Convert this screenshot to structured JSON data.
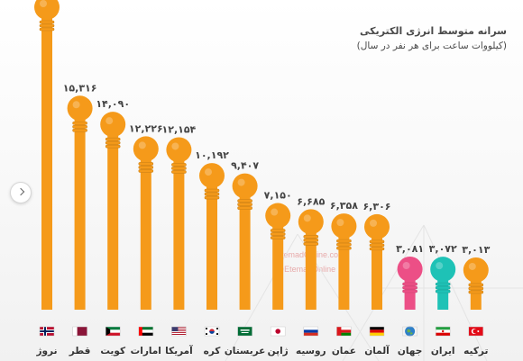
{
  "chart_data": {
    "type": "bar",
    "title": "سرانه متوسط انرژی الکتریکی",
    "subtitle": "(کیلووات ساعت برای هر نفر در سال)",
    "xlabel": "",
    "ylabel": "",
    "categories": [
      "نروژ",
      "قطر",
      "کویت",
      "امارات",
      "آمریکا",
      "کره",
      "عربستان",
      "ژاپن",
      "روسیه",
      "عمان",
      "آلمان",
      "جهان",
      "ایران",
      "ترکیه"
    ],
    "value_labels": [
      "",
      "۱۵,۳۱۶",
      "۱۴,۰۹۰",
      "۱۲,۲۲۶",
      "۱۲,۱۵۴",
      "۱۰,۱۹۲",
      "۹,۴۰۷",
      "۷,۱۵۰",
      "۶,۶۸۵",
      "۶,۳۵۸",
      "۶,۳۰۶",
      "۳,۰۸۱",
      "۳,۰۷۲",
      "۳,۰۱۳"
    ],
    "values": [
      23000,
      15316,
      14090,
      12226,
      12154,
      10192,
      9407,
      7150,
      6685,
      6358,
      6306,
      3081,
      3072,
      3013
    ],
    "colors": [
      "#f59a1a",
      "#f59a1a",
      "#f59a1a",
      "#f59a1a",
      "#f59a1a",
      "#f59a1a",
      "#f59a1a",
      "#f59a1a",
      "#f59a1a",
      "#f59a1a",
      "#f59a1a",
      "#ec4f86",
      "#1ec2b6",
      "#f59a1a"
    ],
    "flags": [
      "norway",
      "qatar",
      "kuwait",
      "uae",
      "usa",
      "korea",
      "saudi",
      "japan",
      "russia",
      "oman",
      "germany",
      "world",
      "iran",
      "turkey"
    ],
    "ylim": [
      0,
      23000
    ],
    "grid": false,
    "legend": "none"
  },
  "watermark": [
    "EtemadOnline.com",
    "@EtemadOnline"
  ]
}
